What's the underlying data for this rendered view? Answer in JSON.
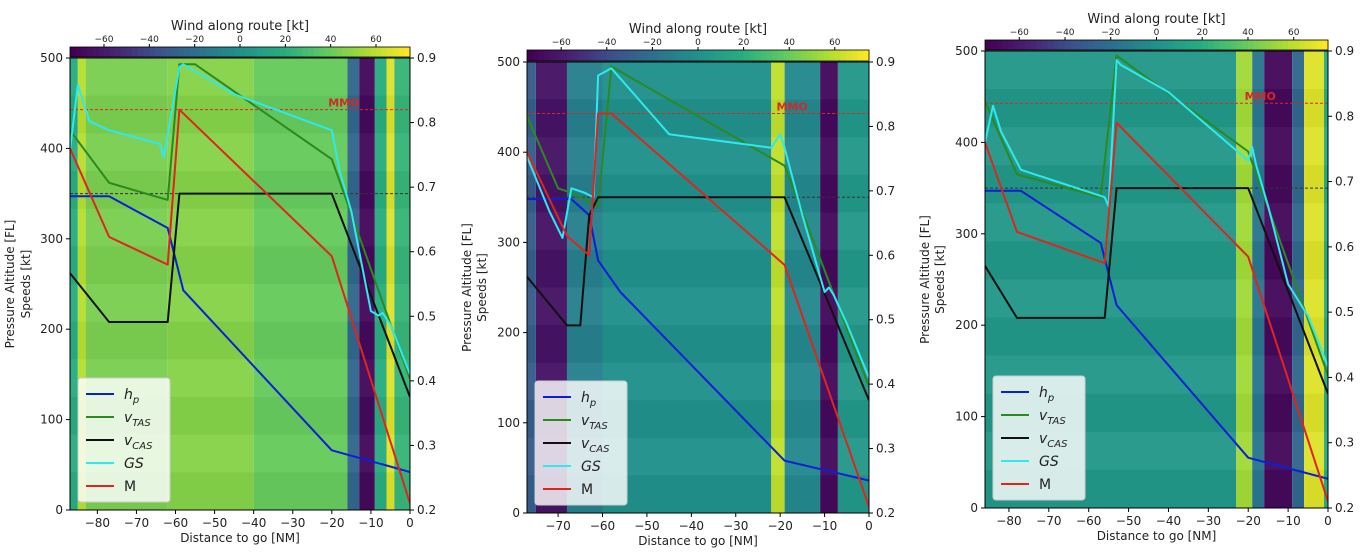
{
  "chart_data": [
    {
      "type": "line",
      "panel": 1,
      "xlabel": "Distance to go [NM]",
      "ylabel": [
        "Pressure Altitude [FL]",
        "Speeds [kt]"
      ],
      "y2label": "",
      "colorbar_title": "Wind along route [kt]",
      "xlim": [
        -87,
        0
      ],
      "ylim": [
        0,
        500
      ],
      "y2lim": [
        0.2,
        0.9
      ],
      "xticks": [
        -80,
        -70,
        -60,
        -50,
        -40,
        -30,
        -20,
        -10,
        0
      ],
      "yticks": [
        0,
        100,
        200,
        300,
        400,
        500
      ],
      "y2ticks": [
        0.2,
        0.3,
        0.4,
        0.5,
        0.6,
        0.7,
        0.8,
        0.9
      ],
      "colorbar_range": [
        -75,
        75
      ],
      "colorbar_ticks": [
        -60,
        -40,
        -20,
        0,
        20,
        40,
        60
      ],
      "background_bands": [
        {
          "x0": -87,
          "x1": -85,
          "wind": 20
        },
        {
          "x0": -85,
          "x1": -83,
          "wind": 60
        },
        {
          "x0": -83,
          "x1": -62,
          "wind": 45
        },
        {
          "x0": -62,
          "x1": -40,
          "wind": 48
        },
        {
          "x0": -40,
          "x1": -16,
          "wind": 40
        },
        {
          "x0": -16,
          "x1": -13,
          "wind": -25
        },
        {
          "x0": -13,
          "x1": -9,
          "wind": -70
        },
        {
          "x0": -9,
          "x1": -6,
          "wind": 20
        },
        {
          "x0": -6,
          "x1": -4,
          "wind": 68
        },
        {
          "x0": -4,
          "x1": 0,
          "wind": 25
        }
      ],
      "grid": false,
      "legend_position": "lower left",
      "annotation": "MMO",
      "mmo": 0.82,
      "dashed_ref": 0.69,
      "series": [
        {
          "name": "h_p",
          "label_main": "h",
          "label_sub": "p",
          "color": "#0b1fd6",
          "axis": "left",
          "x": [
            -87,
            -77,
            -62,
            -58,
            -20,
            0
          ],
          "y": [
            347,
            347,
            312,
            243,
            66,
            42
          ]
        },
        {
          "name": "v_TAS",
          "label_main": "v",
          "label_sub": "TAS",
          "color": "#2a8a1f",
          "axis": "left",
          "x": [
            -87,
            -77,
            -62,
            -59,
            -55,
            -20,
            0
          ],
          "y": [
            420,
            362,
            343,
            493,
            493,
            388,
            145
          ]
        },
        {
          "name": "v_CAS",
          "label_main": "v",
          "label_sub": "CAS",
          "color": "#111111",
          "axis": "left",
          "x": [
            -87,
            -77,
            -62,
            -59,
            -20,
            0
          ],
          "y": [
            262,
            208,
            208,
            350,
            350,
            125
          ]
        },
        {
          "name": "GS",
          "label_main": "GS",
          "label_sub": "",
          "color": "#2fe8f0",
          "axis": "left",
          "x": [
            -87,
            -85,
            -82,
            -77,
            -64,
            -63,
            -59,
            -58,
            -45,
            -20,
            -18,
            -15,
            -10,
            -8,
            -7,
            -5,
            0
          ],
          "y": [
            398,
            470,
            430,
            420,
            405,
            390,
            490,
            493,
            460,
            420,
            375,
            330,
            220,
            215,
            218,
            205,
            150
          ]
        },
        {
          "name": "M",
          "label_main": "M",
          "label_sub": "",
          "color": "#e0241e",
          "axis": "right",
          "x": [
            -87,
            -77,
            -62,
            -59,
            -20,
            0
          ],
          "y": [
            0.76,
            0.623,
            0.58,
            0.82,
            0.593,
            0.21
          ]
        }
      ]
    },
    {
      "type": "line",
      "panel": 2,
      "xlabel": "Distance to go [NM]",
      "ylabel": [
        "Pressure Altitude [FL]",
        "Speeds [kt]"
      ],
      "y2label": "",
      "colorbar_title": "Wind along route [kt]",
      "xlim": [
        -77,
        0
      ],
      "ylim": [
        0,
        500
      ],
      "y2lim": [
        0.2,
        0.9
      ],
      "xticks": [
        -70,
        -60,
        -50,
        -40,
        -30,
        -20,
        -10,
        0
      ],
      "yticks": [
        0,
        100,
        200,
        300,
        400,
        500
      ],
      "y2ticks": [
        0.2,
        0.3,
        0.4,
        0.5,
        0.6,
        0.7,
        0.8,
        0.9
      ],
      "colorbar_range": [
        -75,
        75
      ],
      "colorbar_ticks": [
        -60,
        -40,
        -20,
        0,
        20,
        40,
        60
      ],
      "background_bands": [
        {
          "x0": -77,
          "x1": -75,
          "wind": -30
        },
        {
          "x0": -75,
          "x1": -68,
          "wind": -65
        },
        {
          "x0": -68,
          "x1": -60,
          "wind": -10
        },
        {
          "x0": -60,
          "x1": -22,
          "wind": 0
        },
        {
          "x0": -22,
          "x1": -19,
          "wind": 62
        },
        {
          "x0": -19,
          "x1": -11,
          "wind": -5
        },
        {
          "x0": -11,
          "x1": -7,
          "wind": -70
        },
        {
          "x0": -7,
          "x1": 0,
          "wind": 5
        }
      ],
      "grid": false,
      "legend_position": "lower left",
      "annotation": "MMO",
      "mmo": 0.82,
      "dashed_ref": 0.69,
      "series": [
        {
          "name": "h_p",
          "label_main": "h",
          "label_sub": "p",
          "color": "#0b1fd6",
          "axis": "left",
          "x": [
            -77,
            -67,
            -63,
            -61,
            -56,
            -19,
            0
          ],
          "y": [
            348,
            348,
            330,
            280,
            245,
            58,
            36
          ]
        },
        {
          "name": "v_TAS",
          "label_main": "v",
          "label_sub": "TAS",
          "color": "#2a8a1f",
          "axis": "left",
          "x": [
            -77,
            -70,
            -67,
            -63,
            -61,
            -58,
            -19,
            0
          ],
          "y": [
            440,
            360,
            355,
            345,
            340,
            495,
            385,
            140
          ]
        },
        {
          "name": "v_CAS",
          "label_main": "v",
          "label_sub": "CAS",
          "color": "#111111",
          "axis": "left",
          "x": [
            -77,
            -68,
            -65,
            -63,
            -61,
            -19,
            0
          ],
          "y": [
            262,
            208,
            208,
            330,
            350,
            350,
            125
          ]
        },
        {
          "name": "GS",
          "label_main": "GS",
          "label_sub": "",
          "color": "#2fe8f0",
          "axis": "left",
          "x": [
            -77,
            -72,
            -69,
            -67,
            -64,
            -62,
            -61,
            -58,
            -45,
            -22,
            -20,
            -19,
            -15,
            -10,
            -9,
            -8,
            -5,
            0
          ],
          "y": [
            395,
            335,
            305,
            360,
            355,
            350,
            485,
            493,
            420,
            405,
            420,
            405,
            330,
            245,
            250,
            242,
            210,
            150
          ]
        },
        {
          "name": "M",
          "label_main": "M",
          "label_sub": "",
          "color": "#e0241e",
          "axis": "right",
          "x": [
            -77,
            -68,
            -63,
            -61,
            -58,
            -19,
            0
          ],
          "y": [
            0.76,
            0.63,
            0.6,
            0.82,
            0.82,
            0.585,
            0.21
          ]
        }
      ]
    },
    {
      "type": "line",
      "panel": 3,
      "xlabel": "Distance to go [NM]",
      "ylabel": [
        "Pressure Altitude [FL]",
        "Speeds [kt]"
      ],
      "y2label": "",
      "colorbar_title": "Wind along route [kt]",
      "xlim": [
        -86,
        0
      ],
      "ylim": [
        0,
        500
      ],
      "y2lim": [
        0.2,
        0.9
      ],
      "xticks": [
        -80,
        -70,
        -60,
        -50,
        -40,
        -30,
        -20,
        -10,
        0
      ],
      "yticks": [
        0,
        100,
        200,
        300,
        400,
        500
      ],
      "y2ticks": [
        0.2,
        0.3,
        0.4,
        0.5,
        0.6,
        0.7,
        0.8,
        0.9
      ],
      "colorbar_range": [
        -75,
        75
      ],
      "colorbar_ticks": [
        -60,
        -40,
        -20,
        0,
        20,
        40,
        60
      ],
      "background_bands": [
        {
          "x0": -86,
          "x1": -23,
          "wind": 5
        },
        {
          "x0": -23,
          "x1": -19,
          "wind": 55
        },
        {
          "x0": -19,
          "x1": -16,
          "wind": -15
        },
        {
          "x0": -16,
          "x1": -9,
          "wind": -70
        },
        {
          "x0": -9,
          "x1": -6,
          "wind": -25
        },
        {
          "x0": -6,
          "x1": -1,
          "wind": 68
        },
        {
          "x0": -1,
          "x1": 0,
          "wind": 20
        }
      ],
      "grid": false,
      "legend_position": "lower left",
      "annotation": "MMO",
      "mmo": 0.82,
      "dashed_ref": 0.69,
      "series": [
        {
          "name": "h_p",
          "label_main": "h",
          "label_sub": "p",
          "color": "#0b1fd6",
          "axis": "left",
          "x": [
            -86,
            -77,
            -57,
            -53,
            -20,
            0
          ],
          "y": [
            347,
            347,
            290,
            222,
            55,
            32
          ]
        },
        {
          "name": "v_TAS",
          "label_main": "v",
          "label_sub": "TAS",
          "color": "#2a8a1f",
          "axis": "left",
          "x": [
            -86,
            -78,
            -57,
            -53,
            -20,
            0
          ],
          "y": [
            445,
            365,
            340,
            495,
            390,
            145
          ]
        },
        {
          "name": "v_CAS",
          "label_main": "v",
          "label_sub": "CAS",
          "color": "#111111",
          "axis": "left",
          "x": [
            -86,
            -78,
            -56,
            -53,
            -20,
            0
          ],
          "y": [
            265,
            208,
            208,
            350,
            350,
            125
          ]
        },
        {
          "name": "GS",
          "label_main": "GS",
          "label_sub": "",
          "color": "#2fe8f0",
          "axis": "left",
          "x": [
            -86,
            -84,
            -82,
            -77,
            -56,
            -55,
            -53,
            -52,
            -40,
            -20,
            -19,
            -18,
            -15,
            -10,
            -5,
            0
          ],
          "y": [
            400,
            440,
            412,
            370,
            340,
            330,
            490,
            485,
            455,
            380,
            395,
            375,
            330,
            245,
            210,
            155
          ]
        },
        {
          "name": "M",
          "label_main": "M",
          "label_sub": "",
          "color": "#e0241e",
          "axis": "right",
          "x": [
            -86,
            -78,
            -56,
            -53,
            -20,
            0
          ],
          "y": [
            0.76,
            0.623,
            0.575,
            0.79,
            0.585,
            0.21
          ]
        }
      ]
    }
  ]
}
